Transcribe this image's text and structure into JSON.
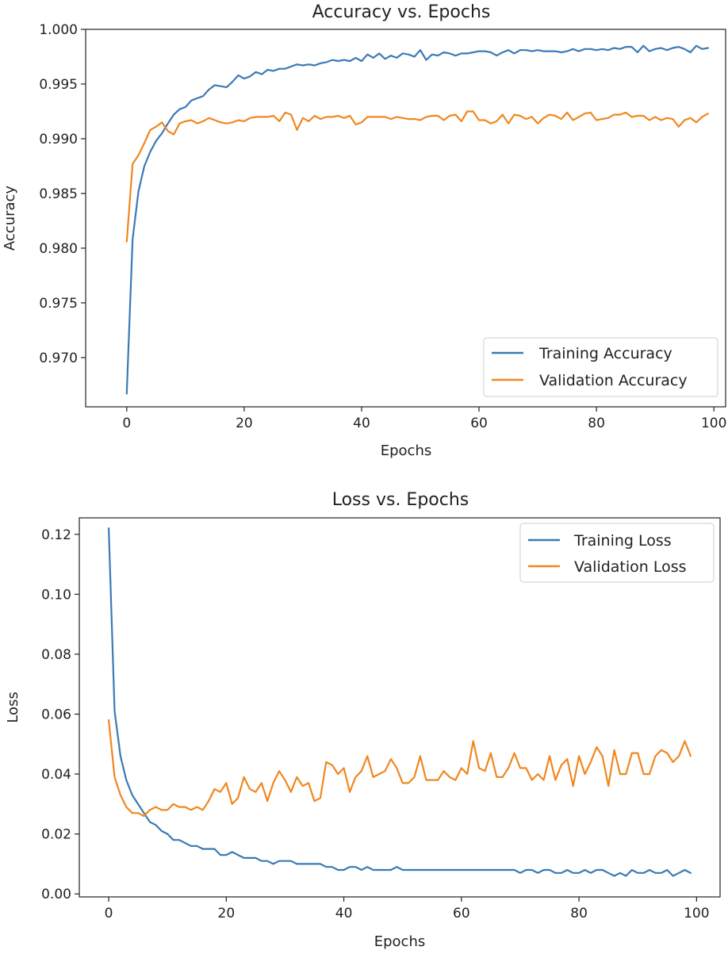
{
  "colors": {
    "training": "#3a7ab5",
    "validation": "#f0871f",
    "axis": "#222222",
    "legend_border": "#cccccc"
  },
  "chart_data": [
    {
      "type": "line",
      "title": "Accuracy vs. Epochs",
      "xlabel": "Epochs",
      "ylabel": "Accuracy",
      "xlim": [
        -7,
        102
      ],
      "ylim": [
        0.9655,
        1.0
      ],
      "xticks": [
        0,
        20,
        40,
        60,
        80,
        100
      ],
      "yticks": [
        0.97,
        0.975,
        0.98,
        0.985,
        0.99,
        0.995,
        1.0
      ],
      "ytick_labels": [
        "0.970",
        "0.975",
        "0.980",
        "0.985",
        "0.990",
        "0.995",
        "1.000"
      ],
      "legend_position": "lower-right",
      "series": [
        {
          "name": "Training Accuracy",
          "color_key": "training",
          "x": [
            0,
            1,
            2,
            3,
            4,
            5,
            6,
            7,
            8,
            9,
            10,
            11,
            12,
            13,
            14,
            15,
            16,
            17,
            18,
            19,
            20,
            21,
            22,
            23,
            24,
            25,
            26,
            27,
            28,
            29,
            30,
            31,
            32,
            33,
            34,
            35,
            36,
            37,
            38,
            39,
            40,
            41,
            42,
            43,
            44,
            45,
            46,
            47,
            48,
            49,
            50,
            51,
            52,
            53,
            54,
            55,
            56,
            57,
            58,
            59,
            60,
            61,
            62,
            63,
            64,
            65,
            66,
            67,
            68,
            69,
            70,
            71,
            72,
            73,
            74,
            75,
            76,
            77,
            78,
            79,
            80,
            81,
            82,
            83,
            84,
            85,
            86,
            87,
            88,
            89,
            90,
            91,
            92,
            93,
            94,
            95,
            96,
            97,
            98,
            99
          ],
          "values": [
            0.9667,
            0.9808,
            0.9852,
            0.9875,
            0.9888,
            0.9898,
            0.9905,
            0.9914,
            0.9922,
            0.9927,
            0.9929,
            0.9935,
            0.9937,
            0.9939,
            0.9945,
            0.9949,
            0.9948,
            0.9947,
            0.9952,
            0.9958,
            0.9955,
            0.9957,
            0.9961,
            0.9959,
            0.9963,
            0.9962,
            0.9964,
            0.9964,
            0.9966,
            0.9968,
            0.9967,
            0.9968,
            0.9967,
            0.9969,
            0.997,
            0.9972,
            0.9971,
            0.9972,
            0.9971,
            0.9974,
            0.9971,
            0.9977,
            0.9974,
            0.9978,
            0.9973,
            0.9976,
            0.9974,
            0.9978,
            0.9977,
            0.9975,
            0.9981,
            0.9972,
            0.9977,
            0.9976,
            0.9979,
            0.9978,
            0.9976,
            0.9978,
            0.9978,
            0.9979,
            0.998,
            0.998,
            0.9979,
            0.9976,
            0.9979,
            0.9981,
            0.9978,
            0.9981,
            0.9981,
            0.998,
            0.9981,
            0.998,
            0.998,
            0.998,
            0.9979,
            0.998,
            0.9982,
            0.998,
            0.9982,
            0.9982,
            0.9981,
            0.9982,
            0.9981,
            0.9983,
            0.9982,
            0.9984,
            0.9984,
            0.9979,
            0.9985,
            0.998,
            0.9982,
            0.9983,
            0.9981,
            0.9983,
            0.9984,
            0.9982,
            0.9979,
            0.9985,
            0.9982,
            0.9983
          ]
        },
        {
          "name": "Validation Accuracy",
          "color_key": "validation",
          "x": [
            0,
            1,
            2,
            3,
            4,
            5,
            6,
            7,
            8,
            9,
            10,
            11,
            12,
            13,
            14,
            15,
            16,
            17,
            18,
            19,
            20,
            21,
            22,
            23,
            24,
            25,
            26,
            27,
            28,
            29,
            30,
            31,
            32,
            33,
            34,
            35,
            36,
            37,
            38,
            39,
            40,
            41,
            42,
            43,
            44,
            45,
            46,
            47,
            48,
            49,
            50,
            51,
            52,
            53,
            54,
            55,
            56,
            57,
            58,
            59,
            60,
            61,
            62,
            63,
            64,
            65,
            66,
            67,
            68,
            69,
            70,
            71,
            72,
            73,
            74,
            75,
            76,
            77,
            78,
            79,
            80,
            81,
            82,
            83,
            84,
            85,
            86,
            87,
            88,
            89,
            90,
            91,
            92,
            93,
            94,
            95,
            96,
            97,
            98,
            99
          ],
          "values": [
            0.9806,
            0.9877,
            0.9885,
            0.9896,
            0.9908,
            0.9911,
            0.9915,
            0.9907,
            0.9904,
            0.9914,
            0.9916,
            0.9917,
            0.9914,
            0.9916,
            0.9919,
            0.9917,
            0.9915,
            0.9914,
            0.9915,
            0.9917,
            0.9916,
            0.9919,
            0.992,
            0.992,
            0.992,
            0.9921,
            0.9916,
            0.9924,
            0.9922,
            0.9908,
            0.9919,
            0.9916,
            0.9921,
            0.9918,
            0.992,
            0.992,
            0.9921,
            0.9919,
            0.9921,
            0.9913,
            0.9915,
            0.992,
            0.992,
            0.992,
            0.992,
            0.9918,
            0.992,
            0.9919,
            0.9918,
            0.9918,
            0.9917,
            0.992,
            0.9921,
            0.9921,
            0.9917,
            0.9921,
            0.9922,
            0.9916,
            0.9925,
            0.9925,
            0.9917,
            0.9917,
            0.9914,
            0.9916,
            0.9922,
            0.9914,
            0.9922,
            0.9921,
            0.9918,
            0.992,
            0.9914,
            0.9919,
            0.9922,
            0.9921,
            0.9918,
            0.9924,
            0.9917,
            0.992,
            0.9923,
            0.9924,
            0.9917,
            0.9918,
            0.9919,
            0.9922,
            0.9922,
            0.9924,
            0.992,
            0.9921,
            0.9921,
            0.9917,
            0.992,
            0.9917,
            0.9919,
            0.9918,
            0.9911,
            0.9917,
            0.9919,
            0.9915,
            0.992,
            0.9923
          ]
        }
      ]
    },
    {
      "type": "line",
      "title": "Loss vs. Epochs",
      "xlabel": "Epochs",
      "ylabel": "Loss",
      "xlim": [
        -5,
        104
      ],
      "ylim": [
        -0.001,
        0.1255
      ],
      "xticks": [
        0,
        20,
        40,
        60,
        80,
        100
      ],
      "yticks": [
        0.0,
        0.02,
        0.04,
        0.06,
        0.08,
        0.1,
        0.12
      ],
      "ytick_labels": [
        "0.00",
        "0.02",
        "0.04",
        "0.06",
        "0.08",
        "0.10",
        "0.12"
      ],
      "legend_position": "upper-right",
      "series": [
        {
          "name": "Training Loss",
          "color_key": "training",
          "x": [
            0,
            1,
            2,
            3,
            4,
            5,
            6,
            7,
            8,
            9,
            10,
            11,
            12,
            13,
            14,
            15,
            16,
            17,
            18,
            19,
            20,
            21,
            22,
            23,
            24,
            25,
            26,
            27,
            28,
            29,
            30,
            31,
            32,
            33,
            34,
            35,
            36,
            37,
            38,
            39,
            40,
            41,
            42,
            43,
            44,
            45,
            46,
            47,
            48,
            49,
            50,
            51,
            52,
            53,
            54,
            55,
            56,
            57,
            58,
            59,
            60,
            61,
            62,
            63,
            64,
            65,
            66,
            67,
            68,
            69,
            70,
            71,
            72,
            73,
            74,
            75,
            76,
            77,
            78,
            79,
            80,
            81,
            82,
            83,
            84,
            85,
            86,
            87,
            88,
            89,
            90,
            91,
            92,
            93,
            94,
            95,
            96,
            97,
            98,
            99
          ],
          "values": [
            0.122,
            0.061,
            0.046,
            0.038,
            0.033,
            0.03,
            0.027,
            0.024,
            0.023,
            0.021,
            0.02,
            0.018,
            0.018,
            0.017,
            0.016,
            0.016,
            0.015,
            0.015,
            0.015,
            0.013,
            0.013,
            0.014,
            0.013,
            0.012,
            0.012,
            0.012,
            0.011,
            0.011,
            0.01,
            0.011,
            0.011,
            0.011,
            0.01,
            0.01,
            0.01,
            0.01,
            0.01,
            0.009,
            0.009,
            0.008,
            0.008,
            0.009,
            0.009,
            0.008,
            0.009,
            0.008,
            0.008,
            0.008,
            0.008,
            0.009,
            0.008,
            0.008,
            0.008,
            0.008,
            0.008,
            0.008,
            0.008,
            0.008,
            0.008,
            0.008,
            0.008,
            0.008,
            0.008,
            0.008,
            0.008,
            0.008,
            0.008,
            0.008,
            0.008,
            0.008,
            0.007,
            0.008,
            0.008,
            0.007,
            0.008,
            0.008,
            0.007,
            0.007,
            0.008,
            0.007,
            0.007,
            0.008,
            0.007,
            0.008,
            0.008,
            0.007,
            0.006,
            0.007,
            0.006,
            0.008,
            0.007,
            0.007,
            0.008,
            0.007,
            0.007,
            0.008,
            0.006,
            0.007,
            0.008,
            0.007
          ]
        },
        {
          "name": "Validation Loss",
          "color_key": "validation",
          "x": [
            0,
            1,
            2,
            3,
            4,
            5,
            6,
            7,
            8,
            9,
            10,
            11,
            12,
            13,
            14,
            15,
            16,
            17,
            18,
            19,
            20,
            21,
            22,
            23,
            24,
            25,
            26,
            27,
            28,
            29,
            30,
            31,
            32,
            33,
            34,
            35,
            36,
            37,
            38,
            39,
            40,
            41,
            42,
            43,
            44,
            45,
            46,
            47,
            48,
            49,
            50,
            51,
            52,
            53,
            54,
            55,
            56,
            57,
            58,
            59,
            60,
            61,
            62,
            63,
            64,
            65,
            66,
            67,
            68,
            69,
            70,
            71,
            72,
            73,
            74,
            75,
            76,
            77,
            78,
            79,
            80,
            81,
            82,
            83,
            84,
            85,
            86,
            87,
            88,
            89,
            90,
            91,
            92,
            93,
            94,
            95,
            96,
            97,
            98,
            99
          ],
          "values": [
            0.058,
            0.039,
            0.033,
            0.029,
            0.027,
            0.027,
            0.026,
            0.028,
            0.029,
            0.028,
            0.028,
            0.03,
            0.029,
            0.029,
            0.028,
            0.029,
            0.028,
            0.031,
            0.035,
            0.034,
            0.037,
            0.03,
            0.032,
            0.039,
            0.035,
            0.034,
            0.037,
            0.031,
            0.037,
            0.041,
            0.038,
            0.034,
            0.039,
            0.036,
            0.037,
            0.031,
            0.032,
            0.044,
            0.043,
            0.04,
            0.042,
            0.034,
            0.039,
            0.041,
            0.046,
            0.039,
            0.04,
            0.041,
            0.045,
            0.042,
            0.037,
            0.037,
            0.039,
            0.046,
            0.038,
            0.038,
            0.038,
            0.041,
            0.039,
            0.038,
            0.042,
            0.04,
            0.051,
            0.042,
            0.041,
            0.047,
            0.039,
            0.039,
            0.042,
            0.047,
            0.042,
            0.042,
            0.038,
            0.04,
            0.038,
            0.046,
            0.038,
            0.043,
            0.045,
            0.036,
            0.046,
            0.04,
            0.044,
            0.049,
            0.046,
            0.036,
            0.048,
            0.04,
            0.04,
            0.047,
            0.047,
            0.04,
            0.04,
            0.046,
            0.048,
            0.047,
            0.044,
            0.046,
            0.051,
            0.046
          ]
        }
      ]
    }
  ]
}
